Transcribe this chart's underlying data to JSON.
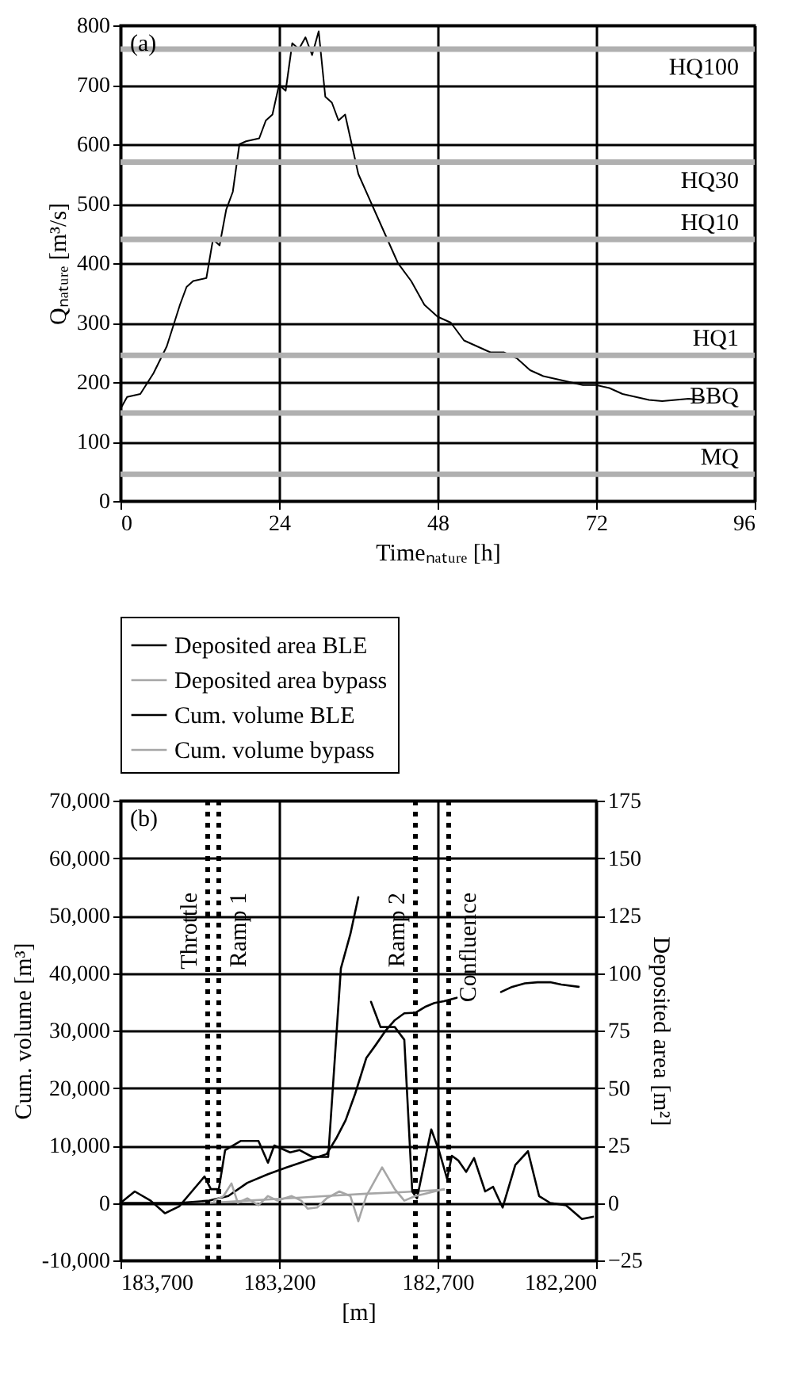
{
  "chart_data": [
    {
      "type": "line",
      "annotations": [
        "(a)"
      ],
      "xlabel": "Timeₙₐₜᵤᵣₑ [h]",
      "ylabel": "Qₙₐₜᵤᵣₑ [m³/s]",
      "xlim": [
        0,
        96
      ],
      "xticks": [
        0,
        24,
        48,
        72,
        96
      ],
      "ylim": [
        0,
        800
      ],
      "yticks": [
        0,
        100,
        200,
        300,
        400,
        500,
        600,
        700,
        800
      ],
      "grid": true,
      "series": [
        {
          "color": "#000000",
          "x": [
            0,
            1,
            3,
            5,
            7,
            9,
            10,
            11,
            13,
            14,
            15,
            16,
            17,
            18,
            19,
            21,
            22,
            23,
            24,
            25,
            26,
            27,
            28,
            29,
            30,
            31,
            32,
            33,
            34,
            35,
            36,
            38,
            40,
            42,
            44,
            46,
            48,
            50,
            52,
            54,
            56,
            58,
            60,
            62,
            64,
            66,
            68,
            70,
            72,
            74,
            76,
            78,
            80,
            82,
            84,
            86,
            88
          ],
          "values": [
            155,
            175,
            180,
            215,
            260,
            330,
            360,
            370,
            375,
            440,
            430,
            490,
            520,
            600,
            605,
            610,
            640,
            650,
            700,
            690,
            770,
            760,
            780,
            750,
            790,
            680,
            670,
            640,
            650,
            600,
            550,
            500,
            450,
            400,
            370,
            330,
            310,
            300,
            270,
            260,
            250,
            250,
            240,
            220,
            210,
            205,
            200,
            195,
            195,
            190,
            180,
            175,
            170,
            168,
            170,
            172,
            170
          ]
        }
      ],
      "ref_lines": [
        {
          "axis": "y",
          "value": 760,
          "label": "HQ100",
          "color": "#b0b0b0"
        },
        {
          "axis": "y",
          "value": 570,
          "label": "HQ30",
          "color": "#b0b0b0"
        },
        {
          "axis": "y",
          "value": 440,
          "label": "HQ10",
          "color": "#b0b0b0"
        },
        {
          "axis": "y",
          "value": 245,
          "label": "HQ1",
          "color": "#b0b0b0"
        },
        {
          "axis": "y",
          "value": 148,
          "label": "BBQ",
          "color": "#b0b0b0"
        },
        {
          "axis": "y",
          "value": 45,
          "label": "MQ",
          "color": "#b0b0b0"
        }
      ]
    },
    {
      "type": "line",
      "annotations": [
        "(b)"
      ],
      "xlabel": "[m]",
      "ylabel": "Cum. volume [m³]",
      "y2label": "Deposited area [m²]",
      "legend": "top",
      "grid": true,
      "xlim": [
        183700,
        182200
      ],
      "xticks": [
        {
          "value": 183700,
          "label": "183,700"
        },
        {
          "value": 183200,
          "label": "183,200"
        },
        {
          "value": 182700,
          "label": "182,700"
        },
        {
          "value": 182200,
          "label": "182,200"
        }
      ],
      "ylim": [
        -10000,
        70000
      ],
      "yticks": [
        {
          "value": -10000,
          "label": "-10,000"
        },
        0,
        {
          "value": 10000,
          "label": "10,000"
        },
        {
          "value": 20000,
          "label": "20,000"
        },
        {
          "value": 30000,
          "label": "30,000"
        },
        {
          "value": 40000,
          "label": "40,000"
        },
        {
          "value": 50000,
          "label": "50,000"
        },
        {
          "value": 60000,
          "label": "60,000"
        },
        {
          "value": 70000,
          "label": "70,000"
        }
      ],
      "y2lim": [
        -25,
        175
      ],
      "y2ticks": [
        -25,
        0,
        25,
        50,
        75,
        100,
        125,
        150,
        175
      ],
      "series": [
        {
          "name": "Deposited area BLE",
          "color": "#000000",
          "axis": "y2",
          "x": [
            183700,
            183655,
            183605,
            183560,
            183515,
            183475,
            183435,
            183415,
            183390,
            183370,
            183320,
            183265,
            183235,
            183215,
            183165,
            183135,
            183095,
            183065,
            183045,
            183005,
            182975,
            182950,
            182930,
            182910,
            182880,
            182835,
            182805,
            182780,
            182765,
            182740,
            182720,
            182695,
            182670,
            182655,
            182635,
            182610,
            182585,
            182550,
            182525,
            182495,
            182455,
            182415,
            182380,
            182345,
            182295,
            182245,
            182210
          ],
          "values": [
            0,
            5,
            1,
            -4.5,
            -1.5,
            5,
            11.5,
            6,
            6,
            23,
            27,
            27,
            17.5,
            25,
            22,
            23,
            20,
            20,
            20,
            102,
            117,
            133,
            null,
            87.5,
            76.5,
            76.5,
            71,
            5,
            2,
            18.5,
            32,
            22.5,
            10.5,
            20.5,
            18.5,
            13.5,
            19.5,
            5,
            7,
            -2,
            16.5,
            22.5,
            3,
            0,
            -1,
            -7,
            -6
          ]
        },
        {
          "name": "Deposited area bypass",
          "color": "#a6a6a6",
          "axis": "y2",
          "x": [
            183405,
            183375,
            183350,
            183330,
            183300,
            183265,
            183235,
            183205,
            183160,
            183130,
            183110,
            183080,
            183050,
            183010,
            182975,
            182950,
            182925,
            182875,
            182835,
            182805,
            182770,
            182740,
            182710,
            182680
          ],
          "values": [
            1,
            3,
            8.5,
            0,
            2,
            -1,
            3,
            1,
            3,
            1,
            -2.5,
            -2,
            2,
            5,
            3,
            -8,
            3,
            15.5,
            6,
            1,
            3,
            4,
            5,
            6
          ]
        },
        {
          "name": "Cum. volume BLE",
          "color": "#000000",
          "x": [
            183700,
            183515,
            183420,
            183360,
            183300,
            183235,
            183175,
            183110,
            183050,
            183020,
            182990,
            182960,
            182925,
            182895,
            182865,
            182835,
            182805,
            182770,
            182740,
            182710,
            182680,
            182640,
            182570,
            182500,
            182465,
            182425,
            182385,
            182345,
            182310,
            182255
          ],
          "values": [
            0,
            0,
            400,
            1200,
            3500,
            5000,
            6200,
            7400,
            8500,
            11200,
            14400,
            19000,
            25200,
            27500,
            29900,
            31800,
            33000,
            33100,
            34100,
            34800,
            35100,
            35700,
            null,
            36700,
            37600,
            38200,
            38400,
            38400,
            38000,
            37600
          ]
        },
        {
          "name": "Cum. volume bypass",
          "color": "#a6a6a6",
          "x": [
            183420,
            183300,
            183175,
            183050,
            182925,
            182805,
            182680
          ],
          "values": [
            0,
            400,
            800,
            1200,
            1600,
            1900,
            2300
          ]
        }
      ],
      "ref_lines": [
        {
          "axis": "x",
          "value": 183425,
          "label": "Throttle",
          "color": "#000000",
          "line_style": "dotted"
        },
        {
          "axis": "x",
          "value": 183390,
          "label": "Ramp 1",
          "color": "#000000",
          "line_style": "dotted"
        },
        {
          "axis": "x",
          "value": 182770,
          "label": "Ramp 2",
          "color": "#000000",
          "line_style": "dotted"
        },
        {
          "axis": "x",
          "value": 182665,
          "label": "Confluence",
          "color": "#000000",
          "line_style": "dotted"
        }
      ]
    }
  ]
}
